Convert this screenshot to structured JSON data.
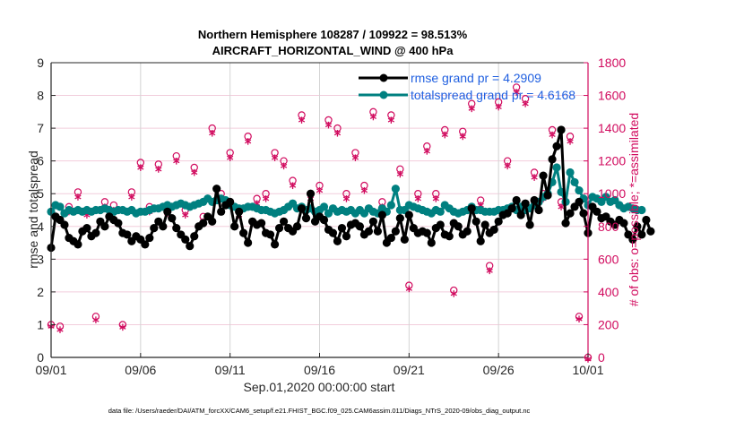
{
  "chart_data": {
    "type": "line",
    "title": "Northern Hemisphere 108287 / 109922 = 98.513%",
    "subtitle": "AIRCRAFT_HORIZONTAL_WIND @ 400 hPa",
    "xlabel": "Sep.01,2020 00:00:00 start",
    "ylabel": "rmse and totalspread",
    "ylabel_right": "# of obs: o=possible; *=assimilated",
    "footnote": "data file: /Users/raeder/DAI/ATM_forcXX/CAM6_setup/f.e21.FHIST_BGC.f09_025.CAM6assim.011/Diags_NTrS_2020-09/obs_diag_output.nc",
    "x_range_days": [
      0,
      30
    ],
    "xticks": [
      {
        "day": 0,
        "label": "09/01"
      },
      {
        "day": 5,
        "label": "09/06"
      },
      {
        "day": 10,
        "label": "09/11"
      },
      {
        "day": 15,
        "label": "09/16"
      },
      {
        "day": 20,
        "label": "09/21"
      },
      {
        "day": 25,
        "label": "09/26"
      },
      {
        "day": 30,
        "label": "10/01"
      }
    ],
    "ylim": [
      0,
      9
    ],
    "yticks": [
      "0",
      "1",
      "2",
      "3",
      "4",
      "5",
      "6",
      "7",
      "8",
      "9"
    ],
    "ylim_right": [
      0,
      1800
    ],
    "yticks_right": [
      "0",
      "200",
      "400",
      "600",
      "800",
      "1000",
      "1200",
      "1400",
      "1600",
      "1800"
    ],
    "grid": true,
    "legend_position": "top-right",
    "colors": {
      "rmse": "#000000",
      "totalspread": "#008080",
      "obs": "#d10a5e",
      "legend_text": "#1f5fe0",
      "grid_h": "#f2cddc",
      "grid_v": "#d4d4d4"
    },
    "sample_interval_days": 0.25,
    "series": [
      {
        "name": "rmse grand pr = 4.2909",
        "key": "rmse",
        "values": [
          3.35,
          4.3,
          4.2,
          4.05,
          3.65,
          3.55,
          3.45,
          3.85,
          3.95,
          3.7,
          3.8,
          4.15,
          4.0,
          4.3,
          4.2,
          4.1,
          3.8,
          3.75,
          3.55,
          3.7,
          3.6,
          3.45,
          3.65,
          3.95,
          4.15,
          4.0,
          4.45,
          4.25,
          3.95,
          3.75,
          3.6,
          3.4,
          3.7,
          4.0,
          4.1,
          4.3,
          4.15,
          5.15,
          4.45,
          4.65,
          4.75,
          4.0,
          4.45,
          3.8,
          3.5,
          4.15,
          4.05,
          4.1,
          3.8,
          3.75,
          3.45,
          3.95,
          4.15,
          3.95,
          3.85,
          4.0,
          4.55,
          4.25,
          5.0,
          4.15,
          4.3,
          4.2,
          3.9,
          3.8,
          3.55,
          3.95,
          3.7,
          4.05,
          4.1,
          4.0,
          3.75,
          3.85,
          4.15,
          3.85,
          4.35,
          3.5,
          3.65,
          3.85,
          4.25,
          3.6,
          4.35,
          3.95,
          3.8,
          3.85,
          3.8,
          3.5,
          3.95,
          4.05,
          3.75,
          3.7,
          4.1,
          4.0,
          3.75,
          3.85,
          4.55,
          4.15,
          3.55,
          4.05,
          3.8,
          3.9,
          4.15,
          4.35,
          4.4,
          4.55,
          4.8,
          4.35,
          4.7,
          4.05,
          4.8,
          4.5,
          5.55,
          4.95,
          6.05,
          6.45,
          6.95,
          4.1,
          4.4,
          4.6,
          4.75,
          4.4,
          3.8,
          4.6,
          4.45,
          4.25,
          4.3,
          4.15,
          4.05,
          4.2,
          4.1,
          3.75,
          3.6,
          4.0,
          3.75,
          4.2,
          3.85
        ]
      },
      {
        "name": "totalspread grand pr = 4.6168",
        "key": "totalspread",
        "values": [
          4.45,
          4.65,
          4.6,
          4.4,
          4.5,
          4.45,
          4.5,
          4.45,
          4.5,
          4.45,
          4.5,
          4.5,
          4.55,
          4.5,
          4.45,
          4.5,
          4.5,
          4.45,
          4.5,
          4.4,
          4.45,
          4.45,
          4.5,
          4.55,
          4.55,
          4.6,
          4.65,
          4.6,
          4.65,
          4.7,
          4.65,
          4.6,
          4.65,
          4.7,
          4.75,
          4.85,
          4.75,
          4.8,
          4.85,
          4.8,
          4.65,
          4.6,
          4.55,
          4.55,
          4.6,
          4.6,
          4.55,
          4.5,
          4.5,
          4.45,
          4.4,
          4.45,
          4.5,
          4.6,
          4.7,
          4.55,
          4.6,
          4.5,
          4.55,
          4.45,
          4.5,
          4.6,
          4.4,
          4.55,
          4.45,
          4.5,
          4.45,
          4.5,
          4.4,
          4.5,
          4.4,
          4.55,
          4.45,
          4.4,
          4.55,
          4.45,
          4.65,
          5.15,
          4.5,
          4.5,
          4.65,
          4.6,
          4.55,
          4.5,
          4.45,
          4.4,
          4.5,
          4.45,
          4.65,
          4.55,
          4.45,
          4.4,
          4.45,
          4.5,
          4.6,
          4.5,
          4.5,
          4.45,
          4.45,
          4.45,
          4.5,
          4.5,
          4.55,
          4.6,
          4.5,
          4.6,
          4.5,
          4.55,
          4.65,
          4.75,
          4.9,
          5.0,
          5.35,
          5.8,
          5.05,
          4.75,
          5.65,
          5.35,
          5.1,
          4.85,
          4.65,
          4.9,
          4.85,
          4.75,
          4.9,
          4.75,
          4.8,
          4.65,
          4.55,
          4.6,
          4.55,
          4.5,
          4.5
        ]
      },
      {
        "name": "# of obs possible",
        "key": "obs_possible",
        "marker": "o",
        "axis": "right",
        "points": [
          [
            0.0,
            200
          ],
          [
            0.5,
            190
          ],
          [
            1.0,
            920
          ],
          [
            1.5,
            1010
          ],
          [
            2.0,
            900
          ],
          [
            2.5,
            250
          ],
          [
            3.0,
            950
          ],
          [
            3.5,
            930
          ],
          [
            4.0,
            200
          ],
          [
            4.5,
            1010
          ],
          [
            5.0,
            1190
          ],
          [
            5.5,
            920
          ],
          [
            6.0,
            1180
          ],
          [
            6.5,
            920
          ],
          [
            7.0,
            1230
          ],
          [
            7.5,
            900
          ],
          [
            8.0,
            1160
          ],
          [
            8.5,
            860
          ],
          [
            9.0,
            1400
          ],
          [
            9.5,
            1000
          ],
          [
            10.0,
            1250
          ],
          [
            10.5,
            900
          ],
          [
            11.0,
            1350
          ],
          [
            11.5,
            970
          ],
          [
            12.0,
            1000
          ],
          [
            12.5,
            1250
          ],
          [
            13.0,
            1200
          ],
          [
            13.5,
            1080
          ],
          [
            14.0,
            1480
          ],
          [
            14.5,
            1000
          ],
          [
            15.0,
            1050
          ],
          [
            15.5,
            1450
          ],
          [
            16.0,
            1400
          ],
          [
            16.5,
            1000
          ],
          [
            17.0,
            1250
          ],
          [
            17.5,
            1050
          ],
          [
            18.0,
            1500
          ],
          [
            18.5,
            950
          ],
          [
            19.0,
            1480
          ],
          [
            19.5,
            1150
          ],
          [
            20.0,
            440
          ],
          [
            20.5,
            1000
          ],
          [
            21.0,
            1290
          ],
          [
            21.5,
            1000
          ],
          [
            22.0,
            1390
          ],
          [
            22.5,
            410
          ],
          [
            23.0,
            1380
          ],
          [
            23.5,
            1550
          ],
          [
            24.0,
            960
          ],
          [
            24.5,
            560
          ],
          [
            25.0,
            1560
          ],
          [
            25.5,
            1200
          ],
          [
            26.0,
            1650
          ],
          [
            26.5,
            1580
          ],
          [
            27.0,
            1130
          ],
          [
            27.5,
            1000
          ],
          [
            28.0,
            1390
          ],
          [
            28.5,
            950
          ],
          [
            29.0,
            1350
          ],
          [
            29.5,
            250
          ],
          [
            30.0,
            0
          ]
        ]
      },
      {
        "name": "# of obs assimilated",
        "key": "obs_assimilated",
        "marker": "*",
        "axis": "right",
        "points": [
          [
            0.0,
            200
          ],
          [
            0.5,
            180
          ],
          [
            1.0,
            900
          ],
          [
            1.5,
            990
          ],
          [
            2.0,
            880
          ],
          [
            2.5,
            240
          ],
          [
            3.0,
            930
          ],
          [
            3.5,
            910
          ],
          [
            4.0,
            195
          ],
          [
            4.5,
            990
          ],
          [
            5.0,
            1170
          ],
          [
            5.5,
            900
          ],
          [
            6.0,
            1160
          ],
          [
            6.5,
            890
          ],
          [
            7.0,
            1210
          ],
          [
            7.5,
            880
          ],
          [
            8.0,
            1140
          ],
          [
            8.5,
            840
          ],
          [
            9.0,
            1380
          ],
          [
            9.5,
            980
          ],
          [
            10.0,
            1230
          ],
          [
            10.5,
            880
          ],
          [
            11.0,
            1330
          ],
          [
            11.5,
            950
          ],
          [
            12.0,
            980
          ],
          [
            12.5,
            1230
          ],
          [
            13.0,
            1180
          ],
          [
            13.5,
            1060
          ],
          [
            14.0,
            1460
          ],
          [
            14.5,
            980
          ],
          [
            15.0,
            1030
          ],
          [
            15.5,
            1430
          ],
          [
            16.0,
            1380
          ],
          [
            16.5,
            980
          ],
          [
            17.0,
            1230
          ],
          [
            17.5,
            1030
          ],
          [
            18.0,
            1480
          ],
          [
            18.5,
            930
          ],
          [
            19.0,
            1460
          ],
          [
            19.5,
            1130
          ],
          [
            20.0,
            430
          ],
          [
            20.5,
            980
          ],
          [
            21.0,
            1270
          ],
          [
            21.5,
            980
          ],
          [
            22.0,
            1370
          ],
          [
            22.5,
            400
          ],
          [
            23.0,
            1360
          ],
          [
            23.5,
            1530
          ],
          [
            24.0,
            940
          ],
          [
            24.5,
            540
          ],
          [
            25.0,
            1540
          ],
          [
            25.5,
            1180
          ],
          [
            26.0,
            1630
          ],
          [
            26.5,
            1560
          ],
          [
            27.0,
            1110
          ],
          [
            27.5,
            980
          ],
          [
            28.0,
            1370
          ],
          [
            28.5,
            930
          ],
          [
            29.0,
            1330
          ],
          [
            29.5,
            245
          ],
          [
            30.0,
            0
          ]
        ]
      }
    ]
  }
}
